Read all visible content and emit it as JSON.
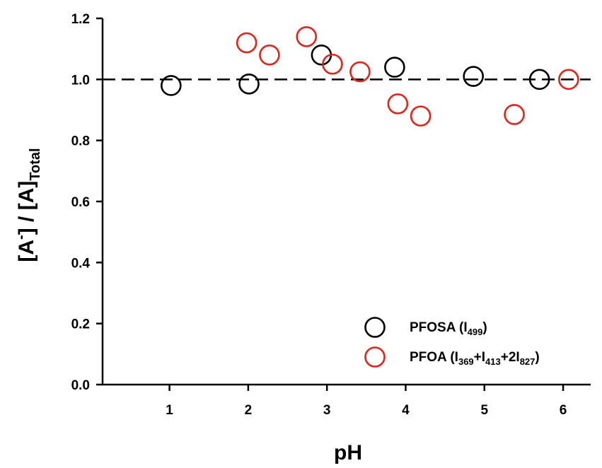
{
  "chart_data": {
    "type": "scatter",
    "xlabel": "pH",
    "ylabel": {
      "prefix": "[A",
      "sup": "-",
      "middle": "] / [A]",
      "sub": "Total"
    },
    "xlim": [
      0.15,
      6.35
    ],
    "ylim": [
      0.0,
      1.2
    ],
    "x_ticks": [
      1,
      2,
      3,
      4,
      5,
      6
    ],
    "y_ticks": [
      0.0,
      0.2,
      0.4,
      0.6,
      0.8,
      1.0,
      1.2
    ],
    "x_tick_labels": [
      "1",
      "2",
      "3",
      "4",
      "5",
      "6"
    ],
    "y_tick_labels": [
      "0.0",
      "0.2",
      "0.4",
      "0.6",
      "0.8",
      "1.0",
      "1.2"
    ],
    "reference_line": {
      "y": 1.0,
      "style": "dashed"
    },
    "grid": false,
    "legend_position": "bottom-right",
    "series": [
      {
        "name": "PFOSA (I499)",
        "legend_parts": [
          {
            "text": "PFOSA (I",
            "sub": false
          },
          {
            "text": "499",
            "sub": true
          },
          {
            "text": ")",
            "sub": false
          }
        ],
        "color": "#000000",
        "marker": "open-circle",
        "points": [
          {
            "x": 1.02,
            "y": 0.98
          },
          {
            "x": 2.01,
            "y": 0.985
          },
          {
            "x": 2.93,
            "y": 1.08
          },
          {
            "x": 3.86,
            "y": 1.04
          },
          {
            "x": 4.86,
            "y": 1.01
          },
          {
            "x": 5.7,
            "y": 1.0
          }
        ]
      },
      {
        "name": "PFOA (I369+I413+2I827)",
        "legend_parts": [
          {
            "text": "PFOA (I",
            "sub": false
          },
          {
            "text": "369",
            "sub": true
          },
          {
            "text": "+I",
            "sub": false
          },
          {
            "text": "413",
            "sub": true
          },
          {
            "text": "+2I",
            "sub": false
          },
          {
            "text": "827",
            "sub": true
          },
          {
            "text": ")",
            "sub": false
          }
        ],
        "color": "#e2231a",
        "marker": "open-circle",
        "points": [
          {
            "x": 1.98,
            "y": 1.12
          },
          {
            "x": 2.27,
            "y": 1.08
          },
          {
            "x": 2.74,
            "y": 1.14
          },
          {
            "x": 3.07,
            "y": 1.05
          },
          {
            "x": 3.42,
            "y": 1.025
          },
          {
            "x": 3.9,
            "y": 0.92
          },
          {
            "x": 4.19,
            "y": 0.88
          },
          {
            "x": 5.38,
            "y": 0.885
          },
          {
            "x": 6.07,
            "y": 1.0
          }
        ]
      }
    ]
  }
}
